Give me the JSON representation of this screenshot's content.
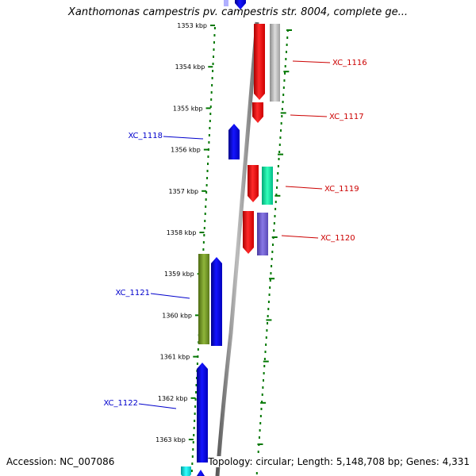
{
  "header": {
    "title": "Xanthomonas campestris pv. campestris str. 8004, complete ge..."
  },
  "footer": {
    "accession": "Accession: NC_007086",
    "summary": "Topology: circular; Length: 5,148,708 bp; Genes: 4,331"
  },
  "ruler": {
    "unit": "kbp",
    "ticks": [
      "1353 kbp",
      "1354 kbp",
      "1355 kbp",
      "1356 kbp",
      "1357 kbp",
      "1358 kbp",
      "1359 kbp",
      "1360 kbp",
      "1361 kbp",
      "1362 kbp",
      "1363 kbp"
    ]
  },
  "genes": [
    {
      "name": "XC_1116",
      "strand": "+",
      "color": "#ff0000"
    },
    {
      "name": "XC_1117",
      "strand": "+",
      "color": "#ff0000"
    },
    {
      "name": "XC_1118",
      "strand": "-",
      "color": "#0000ee"
    },
    {
      "name": "XC_1119",
      "strand": "+",
      "color": "#ff0000"
    },
    {
      "name": "XC_1120",
      "strand": "+",
      "color": "#ff0000"
    },
    {
      "name": "XC_1121",
      "strand": "-",
      "color": "#0000ee"
    },
    {
      "name": "XC_1122",
      "strand": "-",
      "color": "#0000ee"
    }
  ],
  "colors": {
    "forward_gene": "#ff0000",
    "reverse_gene": "#0000ee",
    "forward_label": "#cc0000",
    "reverse_label": "#0000cc",
    "backbone": "#808080",
    "track_dots": "#007700",
    "extra_features": [
      "#b4b4b4",
      "#00dd99",
      "#6a5acd",
      "#6b8e23",
      "#00cccc"
    ]
  }
}
